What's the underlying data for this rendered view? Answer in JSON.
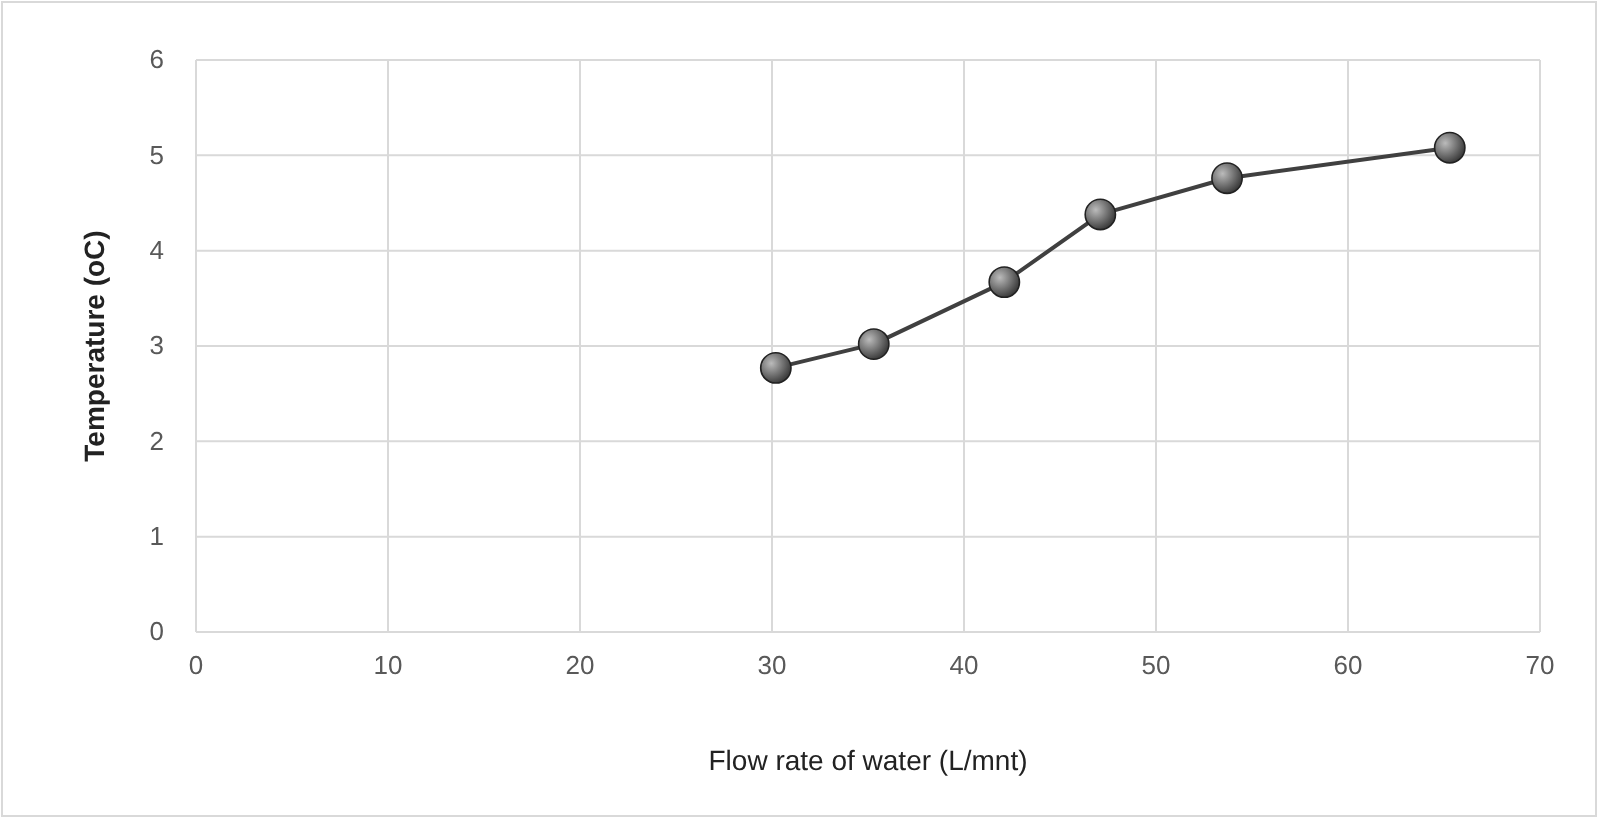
{
  "chart_data": {
    "type": "line",
    "xlabel": "Flow rate of water (L/mnt)",
    "ylabel": "Temperature (oC)",
    "x": [
      30.2,
      35.3,
      42.1,
      47.1,
      53.7,
      65.3
    ],
    "series": [
      {
        "color": "#404040",
        "values": [
          2.77,
          3.02,
          3.67,
          4.38,
          4.76,
          5.08
        ]
      }
    ],
    "xlim": [
      0,
      70
    ],
    "xticks": [
      0,
      10,
      20,
      30,
      40,
      50,
      60,
      70
    ],
    "ylim": [
      0,
      6
    ],
    "yticks": [
      0,
      1,
      2,
      3,
      4,
      5,
      6
    ],
    "grid": true,
    "marker": "circle",
    "line_style": "solid"
  }
}
